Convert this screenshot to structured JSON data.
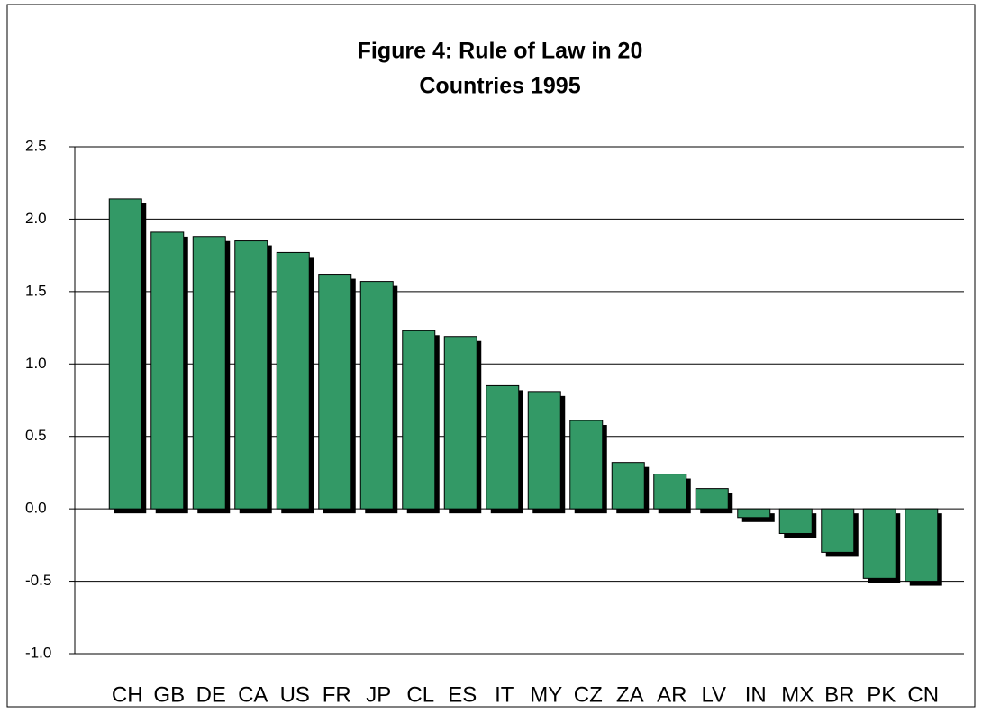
{
  "chart_data": {
    "type": "bar",
    "title": [
      "Figure 4: Rule of Law in 20",
      "Countries 1995"
    ],
    "categories": [
      "CH",
      "GB",
      "DE",
      "CA",
      "US",
      "FR",
      "JP",
      "CL",
      "ES",
      "IT",
      "MY",
      "CZ",
      "ZA",
      "AR",
      "LV",
      "IN",
      "MX",
      "BR",
      "PK",
      "CN"
    ],
    "values": [
      2.14,
      1.91,
      1.88,
      1.85,
      1.77,
      1.62,
      1.57,
      1.23,
      1.19,
      0.85,
      0.81,
      0.61,
      0.32,
      0.24,
      0.14,
      -0.06,
      -0.17,
      -0.3,
      -0.48,
      -0.5
    ],
    "color": "#339966",
    "ylim": [
      -1.0,
      2.5
    ],
    "yticks": [
      2.5,
      {
        "value": 2.0,
        "label": "2.0"
      },
      1.5,
      {
        "value": 1.0,
        "label": "1.0"
      },
      0.5,
      {
        "value": 0.0,
        "label": "0.0"
      },
      -0.5,
      {
        "value": -1.0,
        "label": "-1.0"
      }
    ],
    "grid": true
  }
}
